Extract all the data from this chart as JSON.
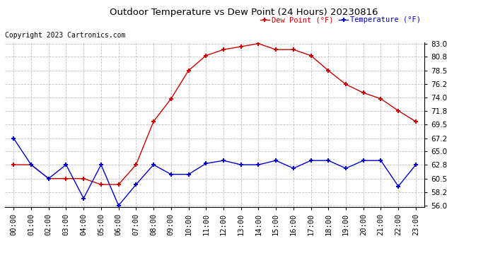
{
  "title": "Outdoor Temperature vs Dew Point (24 Hours) 20230816",
  "copyright": "Copyright 2023 Cartronics.com",
  "legend_dew": "Dew Point (°F)",
  "legend_temp": "Temperature (°F)",
  "hours": [
    "00:00",
    "01:00",
    "02:00",
    "03:00",
    "04:00",
    "05:00",
    "06:00",
    "07:00",
    "08:00",
    "09:00",
    "10:00",
    "11:00",
    "12:00",
    "13:00",
    "14:00",
    "15:00",
    "16:00",
    "17:00",
    "18:00",
    "19:00",
    "20:00",
    "21:00",
    "22:00",
    "23:00"
  ],
  "temperature": [
    67.2,
    62.8,
    60.5,
    62.8,
    57.2,
    62.8,
    56.0,
    59.5,
    62.8,
    61.2,
    61.2,
    63.0,
    63.5,
    62.8,
    62.8,
    63.5,
    62.2,
    63.5,
    63.5,
    62.2,
    63.5,
    63.5,
    59.2,
    62.8
  ],
  "dew_point": [
    62.8,
    62.8,
    60.5,
    60.5,
    60.5,
    59.5,
    59.5,
    62.8,
    70.0,
    73.8,
    78.5,
    81.0,
    82.0,
    82.5,
    83.0,
    82.0,
    82.0,
    81.0,
    78.5,
    76.2,
    74.8,
    73.8,
    71.8,
    70.0
  ],
  "ylim_min": 56.0,
  "ylim_max": 83.0,
  "yticks": [
    56.0,
    58.2,
    60.5,
    62.8,
    65.0,
    67.2,
    69.5,
    71.8,
    74.0,
    76.2,
    78.5,
    80.8,
    83.0
  ],
  "temp_color": "#0000cc",
  "dew_color": "#cc0000",
  "bg_color": "#ffffff",
  "grid_color": "#bbbbbb",
  "title_color": "#000000",
  "copyright_color": "#000000",
  "legend_dew_color": "#cc0000",
  "legend_temp_color": "#0000cc"
}
